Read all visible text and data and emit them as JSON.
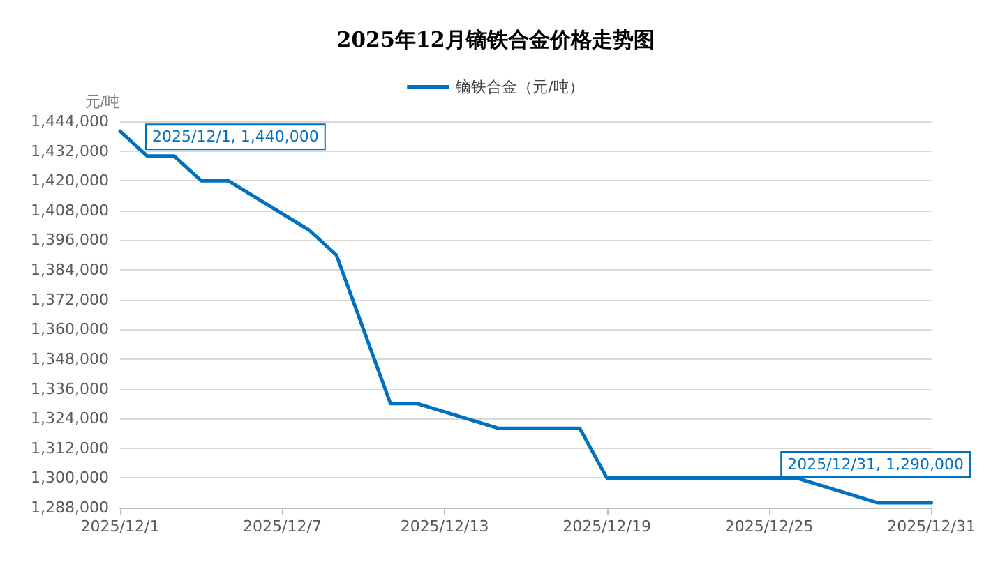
{
  "chart_data": {
    "type": "line",
    "title": "2025年12月镝铁合金价格走势图",
    "ylabel": "元/吨",
    "x": [
      "2025-12-01",
      "2025-12-02",
      "2025-12-03",
      "2025-12-04",
      "2025-12-05",
      "2025-12-08",
      "2025-12-09",
      "2025-12-11",
      "2025-12-12",
      "2025-12-15",
      "2025-12-16",
      "2025-12-17",
      "2025-12-18",
      "2025-12-19",
      "2025-12-22",
      "2025-12-23",
      "2025-12-24",
      "2025-12-25",
      "2025-12-26",
      "2025-12-29",
      "2025-12-30",
      "2025-12-31"
    ],
    "series": [
      {
        "name": "镝铁合金（元/吨）",
        "color": "#0070c0",
        "values": [
          1440000,
          1430000,
          1430000,
          1420000,
          1420000,
          1400000,
          1390000,
          1330000,
          1330000,
          1320000,
          1320000,
          1320000,
          1320000,
          1300000,
          1300000,
          1300000,
          1300000,
          1300000,
          1300000,
          1290000,
          1290000,
          1290000
        ]
      }
    ],
    "xlim": [
      "2025-12-01",
      "2025-12-31"
    ],
    "xticks": [
      {
        "value": "2025-12-01",
        "label": "2025/12/1"
      },
      {
        "value": "2025-12-07",
        "label": "2025/12/7"
      },
      {
        "value": "2025-12-13",
        "label": "2025/12/13"
      },
      {
        "value": "2025-12-19",
        "label": "2025/12/19"
      },
      {
        "value": "2025-12-25",
        "label": "2025/12/25"
      },
      {
        "value": "2025-12-31",
        "label": "2025/12/31"
      }
    ],
    "ylim": [
      1288000,
      1444000
    ],
    "yticks": [
      {
        "value": 1288000,
        "label": "1,288,000"
      },
      {
        "value": 1300000,
        "label": "1,300,000"
      },
      {
        "value": 1312000,
        "label": "1,312,000"
      },
      {
        "value": 1324000,
        "label": "1,324,000"
      },
      {
        "value": 1336000,
        "label": "1,336,000"
      },
      {
        "value": 1348000,
        "label": "1,348,000"
      },
      {
        "value": 1360000,
        "label": "1,360,000"
      },
      {
        "value": 1372000,
        "label": "1,372,000"
      },
      {
        "value": 1384000,
        "label": "1,384,000"
      },
      {
        "value": 1396000,
        "label": "1,396,000"
      },
      {
        "value": 1408000,
        "label": "1,408,000"
      },
      {
        "value": 1420000,
        "label": "1,420,000"
      },
      {
        "value": 1432000,
        "label": "1,432,000"
      },
      {
        "value": 1444000,
        "label": "1,444,000"
      }
    ],
    "annotations": [
      {
        "text": "2025/12/1, 1,440,000",
        "x": "2025-12-01",
        "y": 1440000
      },
      {
        "text": "2025/12/31, 1,290,000",
        "x": "2025-12-31",
        "y": 1290000
      }
    ],
    "grid": "y",
    "legend": "top",
    "marker": "none",
    "line_style": "solid"
  }
}
